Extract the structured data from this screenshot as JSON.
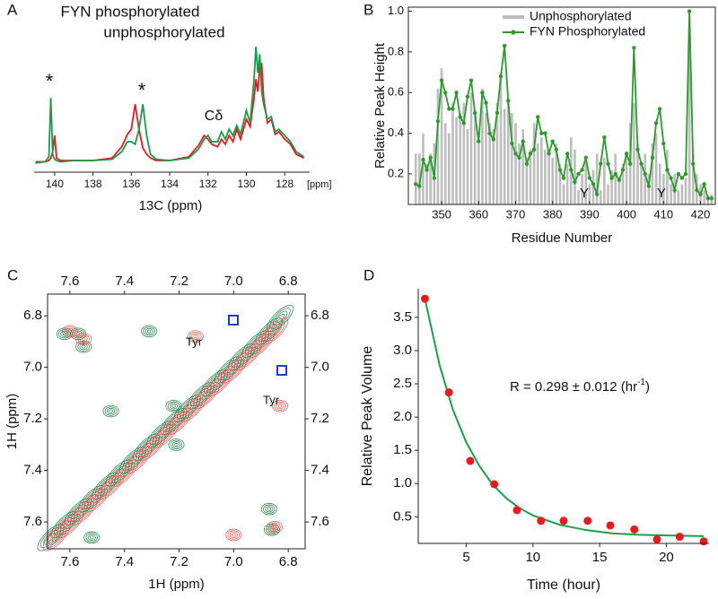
{
  "chart_data": [
    {
      "type": "spectrum",
      "panel": "A",
      "x": [
        141.0,
        140.5,
        140.3,
        140.2,
        140.1,
        140.0,
        139.9,
        139.7,
        139.0,
        138.0,
        137.0,
        136.5,
        136.2,
        136.0,
        135.8,
        135.6,
        135.4,
        135.2,
        135.0,
        134.7,
        134.0,
        133.0,
        132.5,
        132.2,
        132.0,
        131.8,
        131.5,
        131.3,
        131.1,
        130.9,
        130.7,
        130.5,
        130.3,
        130.0,
        129.8,
        129.6,
        129.5,
        129.4,
        129.3,
        129.2,
        129.1,
        128.9,
        128.7,
        128.5,
        128.3,
        128.0,
        127.7,
        127.4,
        127.0
      ],
      "series": [
        {
          "name": "FYN phosphorylated",
          "color": "#1a9a4a",
          "values": [
            0.03,
            0.04,
            0.08,
            0.55,
            0.1,
            0.06,
            0.05,
            0.04,
            0.05,
            0.05,
            0.06,
            0.12,
            0.2,
            0.2,
            0.18,
            0.3,
            0.5,
            0.25,
            0.1,
            0.06,
            0.05,
            0.07,
            0.14,
            0.22,
            0.25,
            0.2,
            0.2,
            0.28,
            0.22,
            0.3,
            0.25,
            0.33,
            0.26,
            0.45,
            0.35,
            0.7,
            0.96,
            0.75,
            0.9,
            0.6,
            0.5,
            0.38,
            0.4,
            0.28,
            0.3,
            0.25,
            0.2,
            0.12,
            0.08
          ]
        },
        {
          "name": "unphosphorylated",
          "color": "#e8191f",
          "values": [
            0.04,
            0.04,
            0.05,
            0.07,
            0.12,
            0.25,
            0.07,
            0.05,
            0.05,
            0.05,
            0.07,
            0.16,
            0.26,
            0.3,
            0.5,
            0.3,
            0.15,
            0.1,
            0.07,
            0.05,
            0.05,
            0.08,
            0.17,
            0.25,
            0.22,
            0.18,
            0.16,
            0.22,
            0.18,
            0.25,
            0.2,
            0.3,
            0.22,
            0.38,
            0.32,
            0.55,
            0.7,
            0.6,
            0.8,
            0.82,
            0.55,
            0.35,
            0.38,
            0.26,
            0.28,
            0.22,
            0.18,
            0.1,
            0.07
          ]
        }
      ],
      "xlim": [
        141.07,
        126.7
      ],
      "xticks": [
        140,
        138,
        136,
        134,
        132,
        130,
        128
      ],
      "x_unit": "[ppm]",
      "xlabel": "13C (ppm)",
      "annotations": [
        "*",
        "*",
        "Cδ"
      ]
    },
    {
      "type": "bar-line",
      "panel": "B",
      "x": [
        343,
        344,
        345,
        346,
        347,
        348,
        349,
        350,
        351,
        352,
        353,
        354,
        355,
        356,
        357,
        358,
        359,
        360,
        361,
        362,
        363,
        364,
        365,
        366,
        367,
        368,
        369,
        370,
        371,
        372,
        373,
        374,
        375,
        376,
        377,
        378,
        379,
        380,
        381,
        382,
        383,
        384,
        385,
        386,
        387,
        388,
        389,
        390,
        391,
        392,
        393,
        394,
        395,
        396,
        397,
        398,
        399,
        400,
        401,
        402,
        403,
        404,
        405,
        406,
        407,
        408,
        409,
        410,
        411,
        412,
        413,
        414,
        415,
        416,
        417,
        418,
        419,
        420,
        421,
        422,
        423
      ],
      "series": [
        {
          "name": "Unphosphorylated",
          "color": "#bdbdbd",
          "values": [
            0.3,
            0.3,
            0.4,
            0.25,
            0.3,
            0.35,
            0.62,
            0.72,
            0.45,
            0.4,
            0.55,
            0.48,
            0.5,
            0.55,
            0.42,
            0.6,
            0.52,
            0.35,
            0.62,
            0.5,
            0.45,
            0.42,
            0.55,
            0.7,
            0.52,
            0.55,
            0.5,
            0.45,
            0.35,
            0.42,
            0.28,
            0.32,
            0.45,
            0.35,
            0.38,
            0.32,
            0.3,
            0.28,
            0.35,
            0.25,
            0.15,
            0.25,
            0.38,
            0.32,
            0.12,
            0.2,
            0.28,
            0.15,
            0.22,
            0.3,
            0.12,
            0.28,
            0.15,
            0.22,
            0.3,
            0.18,
            0.25,
            0.3,
            0.45,
            0.55,
            0.35,
            0.25,
            0.3,
            0.2,
            0.35,
            0.4,
            0.25,
            0.2,
            0.32,
            0.15,
            0.2,
            0.12,
            0.15,
            0.18,
            0.85,
            0.3,
            0.2,
            0.15,
            0.12,
            0.1,
            0.1
          ]
        },
        {
          "name": "FYN Phosphorylated",
          "color": "#2e9a2e",
          "values": [
            0.15,
            0.14,
            0.27,
            0.22,
            0.28,
            0.18,
            0.46,
            0.66,
            0.6,
            0.52,
            0.52,
            0.6,
            0.48,
            0.45,
            0.58,
            0.66,
            0.5,
            0.36,
            0.6,
            0.55,
            0.4,
            0.37,
            0.5,
            0.68,
            0.83,
            0.56,
            0.35,
            0.3,
            0.28,
            0.36,
            0.25,
            0.3,
            0.32,
            0.48,
            0.4,
            0.4,
            0.3,
            0.36,
            0.32,
            0.22,
            0.18,
            0.3,
            0.22,
            0.16,
            0.2,
            0.22,
            0.28,
            0.18,
            0.15,
            0.1,
            0.25,
            0.38,
            0.25,
            0.18,
            0.2,
            0.17,
            0.22,
            0.3,
            0.25,
            0.82,
            0.32,
            0.25,
            0.2,
            0.14,
            0.28,
            0.45,
            0.52,
            0.35,
            0.22,
            0.18,
            0.12,
            0.2,
            0.18,
            0.2,
            1.0,
            0.25,
            0.12,
            0.1,
            0.15,
            0.08,
            0.08
          ]
        }
      ],
      "xlim": [
        341,
        424
      ],
      "ylim": [
        0.05,
        1.02
      ],
      "xticks": [
        350,
        360,
        370,
        380,
        390,
        400,
        410,
        420
      ],
      "yticks": [
        0.2,
        0.4,
        0.6,
        0.8,
        {
          "value": 1,
          "label": "1.0"
        }
      ],
      "xlabel": "Residue Number",
      "ylabel": "Relative Peak Height",
      "legend": "upper center",
      "annotations": [
        "Y",
        "Y"
      ]
    },
    {
      "type": "contour",
      "panel": "C",
      "series": [
        {
          "color": "#1f7a45",
          "x": [
            7.67,
            7.62,
            7.57,
            7.52,
            7.47,
            7.42,
            7.37,
            7.32,
            7.27,
            7.22,
            7.17,
            7.12,
            7.07,
            7.02,
            6.97,
            6.92,
            6.87,
            6.83,
            7.62,
            7.57,
            7.55,
            7.22,
            7.21,
            7.31,
            7.45,
            6.87,
            6.86,
            7.52
          ],
          "values": [
            7.66,
            7.61,
            7.56,
            7.51,
            7.46,
            7.41,
            7.36,
            7.31,
            7.26,
            7.21,
            7.16,
            7.11,
            7.06,
            7.01,
            6.96,
            6.91,
            6.86,
            6.81,
            6.87,
            6.87,
            6.92,
            7.15,
            7.3,
            6.86,
            7.17,
            7.55,
            7.63,
            7.66
          ]
        },
        {
          "color": "#d9534f",
          "x": [
            7.65,
            7.6,
            7.55,
            7.5,
            7.45,
            7.4,
            7.35,
            7.3,
            7.25,
            7.2,
            7.15,
            7.1,
            7.05,
            7.0,
            6.95,
            6.9,
            6.85,
            7.14,
            6.83,
            7.6,
            7.55,
            7.0,
            6.85
          ],
          "values": [
            7.66,
            7.61,
            7.56,
            7.51,
            7.46,
            7.41,
            7.36,
            7.31,
            7.26,
            7.21,
            7.16,
            7.11,
            7.06,
            7.01,
            6.96,
            6.91,
            6.86,
            6.88,
            7.15,
            6.86,
            6.89,
            7.65,
            7.62
          ]
        }
      ],
      "xlim": [
        7.682,
        6.738
      ],
      "ylim": [
        6.716,
        7.704
      ],
      "xticks": [
        7.6,
        7.4,
        7.2,
        {
          "value": 7,
          "label": "7.0"
        },
        6.8
      ],
      "yticks": [
        6.8,
        {
          "value": 7,
          "label": "7.0"
        },
        7.2,
        7.4,
        7.6
      ],
      "xlabel": "1H (ppm)",
      "ylabel": "1H (ppm)",
      "annotations": [
        "Tyr",
        "Tyr"
      ]
    },
    {
      "type": "scatter",
      "panel": "D",
      "x": [
        1.9,
        3.7,
        5.3,
        7.1,
        8.8,
        10.6,
        12.3,
        14.1,
        15.8,
        17.6,
        19.3,
        21.0,
        22.8
      ],
      "values": [
        3.78,
        2.37,
        1.34,
        0.99,
        0.6,
        0.44,
        0.44,
        0.44,
        0.37,
        0.31,
        0.16,
        0.2,
        0.13
      ],
      "color": "#e8191f",
      "fit": {
        "color": "#1aa04a",
        "x": [
          1.9,
          3,
          4,
          5,
          6,
          7,
          8,
          9,
          10,
          12,
          14,
          16,
          18,
          20,
          22.8
        ],
        "values": [
          3.78,
          2.78,
          2.11,
          1.62,
          1.26,
          0.98,
          0.78,
          0.63,
          0.52,
          0.38,
          0.3,
          0.25,
          0.23,
          0.22,
          0.21
        ]
      },
      "xlim": [
        1.4,
        23.2
      ],
      "ylim": [
        0.1,
        3.93
      ],
      "xticks": [
        5,
        10,
        15,
        20
      ],
      "yticks": [
        0.5,
        {
          "value": 1,
          "label": "1.0"
        },
        1.5,
        {
          "value": 2,
          "label": "2.0"
        },
        2.5,
        {
          "value": 3,
          "label": "3.0"
        },
        3.5
      ],
      "xlabel": "Time (hour)",
      "ylabel": "Relative Peak Volume",
      "annotation": [
        "R = 0.298 ± 0.012 (hr",
        "-1",
        ")"
      ]
    }
  ]
}
